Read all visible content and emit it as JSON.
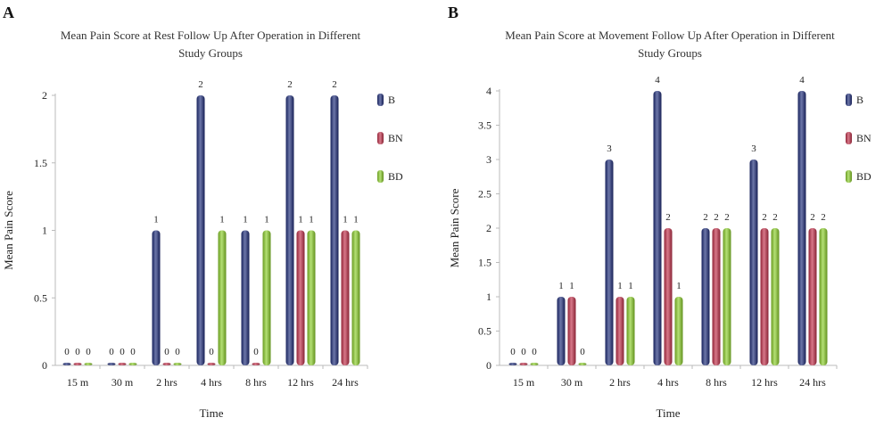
{
  "panels": [
    {
      "letter": "A",
      "chart_data": {
        "type": "bar",
        "title_lines": [
          "Mean Pain Score at Rest Follow Up After Operation in Different",
          "Study Groups"
        ],
        "xlabel": "Time",
        "ylabel": "Mean Pain Score",
        "categories": [
          "15 m",
          "30 m",
          "2 hrs",
          "4 hrs",
          "8 hrs",
          "12 hrs",
          "24 hrs"
        ],
        "ylim": [
          0,
          2
        ],
        "yticks": [
          0,
          0.5,
          1,
          1.5,
          2
        ],
        "ytick_labels": [
          "0",
          "0.5",
          "1",
          "1.5",
          "2"
        ],
        "grid": false,
        "legend_position": "right",
        "series": [
          {
            "name": "B",
            "color": "#1f2d7a",
            "values": [
              0,
              0,
              1,
              2,
              1,
              2,
              2
            ]
          },
          {
            "name": "BN",
            "color": "#c2304a",
            "values": [
              0,
              0,
              0,
              0,
              0,
              1,
              1
            ]
          },
          {
            "name": "BD",
            "color": "#8ccf2a",
            "values": [
              0,
              0,
              0,
              1,
              1,
              1,
              1
            ]
          }
        ]
      }
    },
    {
      "letter": "B",
      "chart_data": {
        "type": "bar",
        "title_lines": [
          "Mean Pain Score at Movement Follow Up After Operation in Different",
          "Study Groups"
        ],
        "xlabel": "Time",
        "ylabel": "Mean Pain Score",
        "categories": [
          "15 m",
          "30 m",
          "2 hrs",
          "4 hrs",
          "8 hrs",
          "12 hrs",
          "24 hrs"
        ],
        "ylim": [
          0,
          4
        ],
        "yticks": [
          0,
          0.5,
          1,
          1.5,
          2,
          2.5,
          3,
          3.5,
          4
        ],
        "ytick_labels": [
          "0",
          "0.5",
          "1",
          "1.5",
          "2",
          "2.5",
          "3",
          "3.5",
          "4"
        ],
        "grid": false,
        "legend_position": "right",
        "series": [
          {
            "name": "B",
            "color": "#1f2d7a",
            "values": [
              0,
              1,
              3,
              4,
              2,
              3,
              4
            ]
          },
          {
            "name": "BN",
            "color": "#c2304a",
            "values": [
              0,
              1,
              1,
              2,
              2,
              2,
              2
            ]
          },
          {
            "name": "BD",
            "color": "#8ccf2a",
            "values": [
              0,
              0,
              1,
              1,
              2,
              2,
              2
            ]
          }
        ]
      }
    }
  ]
}
